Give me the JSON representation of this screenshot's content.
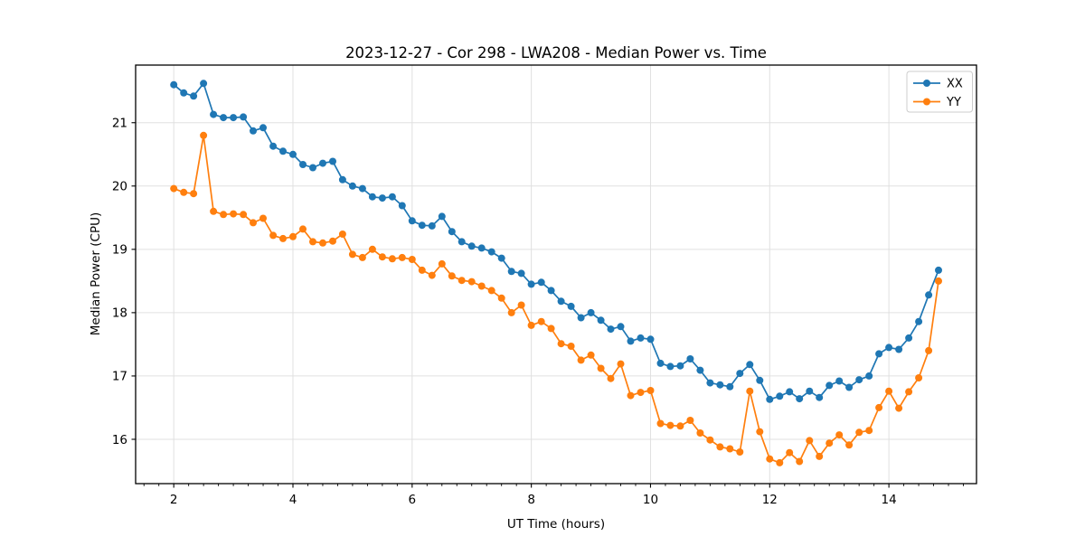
{
  "figure_title": "2023-12-27 - Cor 298 - LWA208 - Median Power vs. Time",
  "chart_data": {
    "type": "line",
    "title": "2023-12-27 - Cor 298 - LWA208 - Median Power vs. Time",
    "xlabel": "UT Time (hours)",
    "ylabel": "Median Power (CPU)",
    "xlim": [
      1.36,
      15.47
    ],
    "ylim": [
      15.3,
      21.91
    ],
    "xticks": [
      2,
      4,
      6,
      8,
      10,
      12,
      14
    ],
    "yticks": [
      16,
      17,
      18,
      19,
      20,
      21
    ],
    "minor_x_step": 0.25,
    "grid": true,
    "grid_color": "#e0e0e0",
    "background_color": "#ffffff",
    "legend_position": "upper right",
    "x": [
      2.0,
      2.167,
      2.333,
      2.5,
      2.667,
      2.833,
      3.0,
      3.167,
      3.333,
      3.5,
      3.667,
      3.833,
      4.0,
      4.167,
      4.333,
      4.5,
      4.667,
      4.833,
      5.0,
      5.167,
      5.333,
      5.5,
      5.667,
      5.833,
      6.0,
      6.167,
      6.333,
      6.5,
      6.667,
      6.833,
      7.0,
      7.167,
      7.333,
      7.5,
      7.667,
      7.833,
      8.0,
      8.167,
      8.333,
      8.5,
      8.667,
      8.833,
      9.0,
      9.167,
      9.333,
      9.5,
      9.667,
      9.833,
      10.0,
      10.167,
      10.333,
      10.5,
      10.667,
      10.833,
      11.0,
      11.167,
      11.333,
      11.5,
      11.667,
      11.833,
      12.0,
      12.167,
      12.333,
      12.5,
      12.667,
      12.833,
      13.0,
      13.167,
      13.333,
      13.5,
      13.667,
      13.833,
      14.0,
      14.167,
      14.333,
      14.5,
      14.667,
      14.833
    ],
    "series": [
      {
        "name": "XX",
        "color": "#1f77b4",
        "values": [
          21.6,
          21.47,
          21.42,
          21.62,
          21.13,
          21.08,
          21.08,
          21.09,
          20.87,
          20.92,
          20.63,
          20.55,
          20.5,
          20.34,
          20.29,
          20.36,
          20.39,
          20.1,
          20.0,
          19.96,
          19.83,
          19.81,
          19.83,
          19.69,
          19.45,
          19.38,
          19.37,
          19.52,
          19.28,
          19.12,
          19.05,
          19.02,
          18.96,
          18.86,
          18.65,
          18.62,
          18.45,
          18.48,
          18.35,
          18.18,
          18.1,
          17.92,
          18.0,
          17.88,
          17.74,
          17.78,
          17.55,
          17.6,
          17.58,
          17.2,
          17.15,
          17.16,
          17.27,
          17.09,
          16.89,
          16.86,
          16.83,
          17.04,
          17.18,
          16.93,
          16.63,
          16.68,
          16.75,
          16.64,
          16.76,
          16.66,
          16.85,
          16.92,
          16.82,
          16.94,
          17.0,
          17.35,
          17.45,
          17.42,
          17.6,
          17.86,
          18.28,
          18.67
        ]
      },
      {
        "name": "YY",
        "color": "#ff7f0e",
        "values": [
          19.96,
          19.9,
          19.88,
          20.8,
          19.6,
          19.55,
          19.56,
          19.55,
          19.42,
          19.49,
          19.22,
          19.17,
          19.2,
          19.32,
          19.12,
          19.1,
          19.13,
          19.24,
          18.92,
          18.87,
          19.0,
          18.88,
          18.85,
          18.87,
          18.84,
          18.67,
          18.59,
          18.77,
          18.58,
          18.51,
          18.49,
          18.42,
          18.35,
          18.23,
          18.0,
          18.12,
          17.8,
          17.86,
          17.75,
          17.51,
          17.47,
          17.25,
          17.33,
          17.12,
          16.96,
          17.19,
          16.69,
          16.74,
          16.77,
          16.25,
          16.22,
          16.21,
          16.3,
          16.1,
          15.99,
          15.88,
          15.85,
          15.8,
          16.76,
          16.12,
          15.69,
          15.63,
          15.79,
          15.65,
          15.98,
          15.73,
          15.94,
          16.07,
          15.91,
          16.11,
          16.14,
          16.5,
          16.76,
          16.49,
          16.75,
          16.97,
          17.4,
          18.5
        ]
      }
    ]
  }
}
